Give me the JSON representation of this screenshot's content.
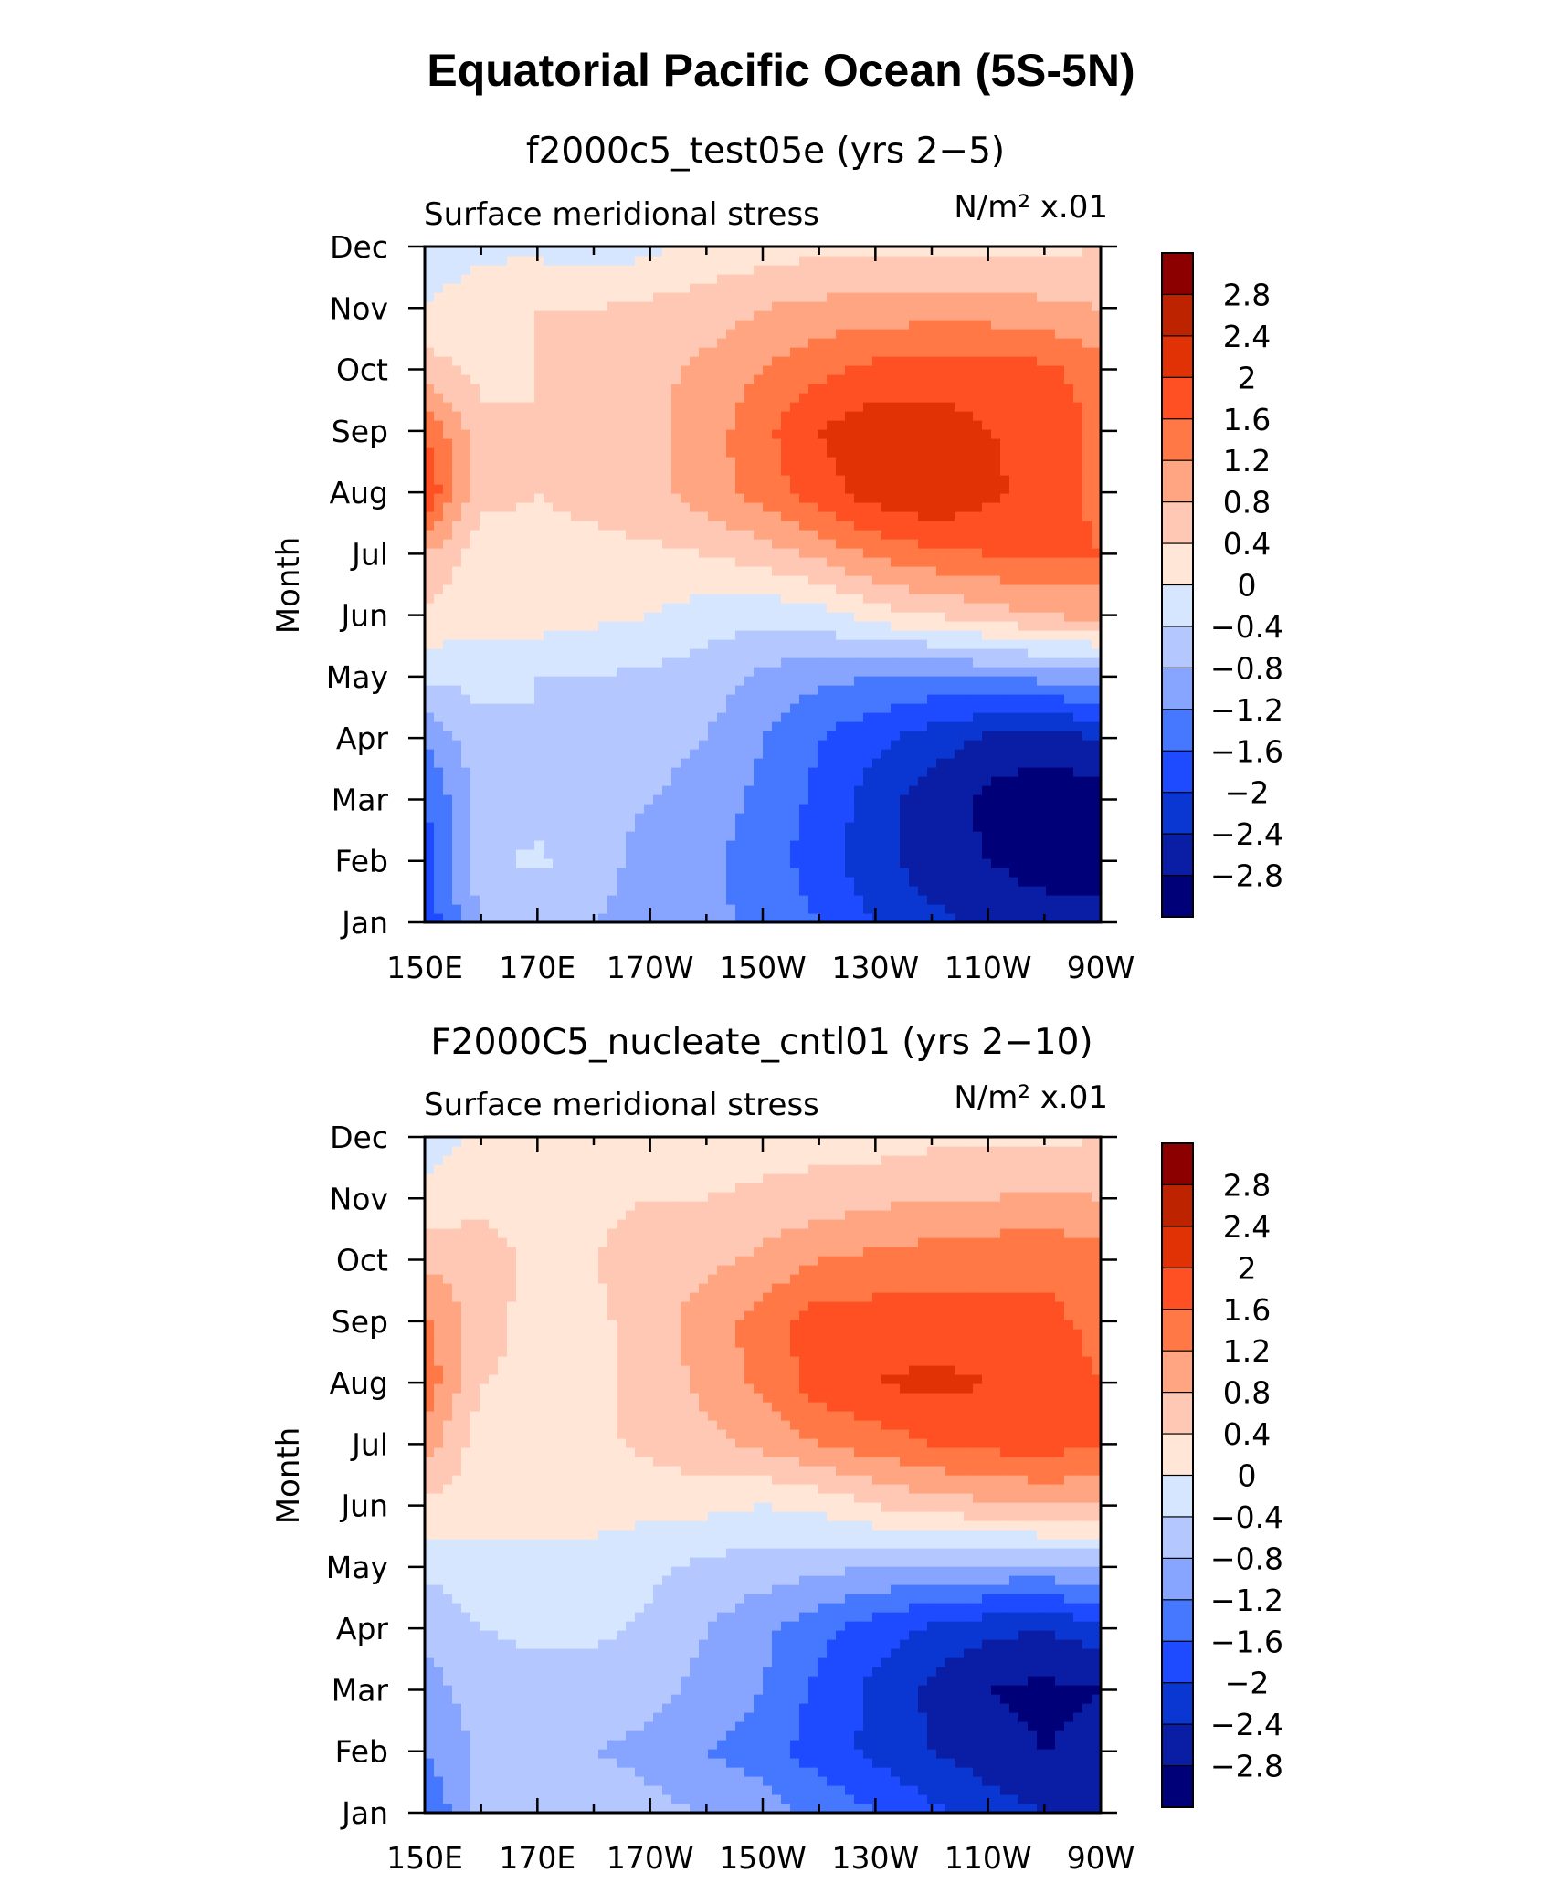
{
  "title": "Equatorial Pacific Ocean (5S-5N)",
  "colors": [
    "#000078",
    "#0a1ea5",
    "#0a37d2",
    "#1e4bff",
    "#4678ff",
    "#87a5ff",
    "#b4c8ff",
    "#d7e6ff",
    "#ffe6d7",
    "#ffc8b4",
    "#ffa582",
    "#ff7846",
    "#ff5023",
    "#e13205",
    "#be2300",
    "#8c0000"
  ],
  "colorbar_labels": [
    "2.8",
    "2.4",
    "2",
    "1.6",
    "1.2",
    "0.8",
    "0.4",
    "0",
    "−0.4",
    "−0.8",
    "−1.2",
    "−1.6",
    "−2",
    "−2.4",
    "−2.8"
  ],
  "chart_data": [
    {
      "type": "heatmap",
      "subtitle": "f2000c5_test05e (yrs 2−5)",
      "left_title": "Surface meridional stress",
      "units": "N/m² x.01",
      "ylabel": "Month",
      "xticks": [
        "150E",
        "170E",
        "170W",
        "150W",
        "130W",
        "110W",
        "90W"
      ],
      "yticks": [
        "Jan",
        "Feb",
        "Mar",
        "Apr",
        "May",
        "Jun",
        "Jul",
        "Aug",
        "Sep",
        "Oct",
        "Nov",
        "Dec"
      ],
      "x_lon": [
        150,
        160,
        170,
        180,
        190,
        200,
        210,
        220,
        230,
        240,
        250,
        260,
        270
      ],
      "levels": [
        -2.8,
        -2.4,
        -2,
        -1.6,
        -1.2,
        -0.8,
        -0.4,
        0,
        0.4,
        0.8,
        1.2,
        1.6,
        2,
        2.4,
        2.8
      ],
      "z": [
        [
          -1.9,
          -0.8,
          -0.8,
          -0.8,
          -0.9,
          -1.1,
          -1.3,
          -1.6,
          -2.0,
          -2.3,
          -2.5,
          -2.6,
          -2.6
        ],
        [
          -1.8,
          -0.5,
          -0.3,
          -0.7,
          -0.9,
          -1.1,
          -1.4,
          -1.8,
          -2.3,
          -2.6,
          -2.8,
          -3.0,
          -3.0
        ],
        [
          -1.6,
          -0.7,
          -0.6,
          -0.7,
          -0.8,
          -1.0,
          -1.3,
          -1.7,
          -2.2,
          -2.6,
          -2.9,
          -3.1,
          -3.0
        ],
        [
          -1.2,
          -0.5,
          -0.4,
          -0.5,
          -0.6,
          -0.8,
          -1.2,
          -1.6,
          -1.9,
          -2.2,
          -2.5,
          -2.6,
          -2.4
        ],
        [
          -0.3,
          -0.3,
          -0.4,
          -0.4,
          -0.5,
          -0.6,
          -0.9,
          -1.1,
          -1.2,
          -1.3,
          -1.2,
          -1.1,
          -1.0
        ],
        [
          0.3,
          0.2,
          0.2,
          0.1,
          0.0,
          -0.2,
          -0.3,
          -0.2,
          0.2,
          0.4,
          0.6,
          0.8,
          0.9
        ],
        [
          0.8,
          0.2,
          0.3,
          0.3,
          0.3,
          0.4,
          0.6,
          0.9,
          1.3,
          1.5,
          1.6,
          1.7,
          1.6
        ],
        [
          2.0,
          0.5,
          0.4,
          0.5,
          0.7,
          1.0,
          1.4,
          1.8,
          2.2,
          2.4,
          2.1,
          1.8,
          1.5
        ],
        [
          1.6,
          0.5,
          0.4,
          0.5,
          0.7,
          1.0,
          1.5,
          2.0,
          2.3,
          2.2,
          2.0,
          1.9,
          1.5
        ],
        [
          0.6,
          0.3,
          0.4,
          0.6,
          0.7,
          0.9,
          1.2,
          1.5,
          1.7,
          1.8,
          1.8,
          1.7,
          1.4
        ],
        [
          0.0,
          0.3,
          0.4,
          0.4,
          0.5,
          0.6,
          0.8,
          0.9,
          1.0,
          1.0,
          1.0,
          0.9,
          0.8
        ],
        [
          -0.3,
          -0.1,
          -0.1,
          -0.2,
          -0.1,
          0.1,
          0.2,
          0.3,
          0.3,
          0.3,
          0.3,
          0.3,
          0.4
        ]
      ]
    },
    {
      "type": "heatmap",
      "subtitle": "F2000C5_nucleate_cntl01 (yrs 2−10)",
      "left_title": "Surface meridional stress",
      "units": "N/m² x.01",
      "ylabel": "Month",
      "xticks": [
        "150E",
        "170E",
        "170W",
        "150W",
        "130W",
        "110W",
        "90W"
      ],
      "yticks": [
        "Jan",
        "Feb",
        "Mar",
        "Apr",
        "May",
        "Jun",
        "Jul",
        "Aug",
        "Sep",
        "Oct",
        "Nov",
        "Dec"
      ],
      "x_lon": [
        150,
        160,
        170,
        180,
        190,
        200,
        210,
        220,
        230,
        240,
        250,
        260,
        270
      ],
      "levels": [
        -2.8,
        -2.4,
        -2,
        -1.6,
        -1.2,
        -0.8,
        -0.4,
        0,
        0.4,
        0.8,
        1.2,
        1.6,
        2,
        2.4,
        2.8
      ],
      "z": [
        [
          -1.6,
          -0.7,
          -0.6,
          -0.6,
          -0.7,
          -0.8,
          -1.0,
          -1.3,
          -1.6,
          -1.9,
          -2.2,
          -2.4,
          -2.4
        ],
        [
          -1.2,
          -0.7,
          -0.7,
          -0.8,
          -0.9,
          -1.2,
          -1.4,
          -1.8,
          -2.1,
          -2.4,
          -2.6,
          -2.8,
          -2.7
        ],
        [
          -1.0,
          -0.6,
          -0.6,
          -0.6,
          -0.7,
          -0.9,
          -1.2,
          -1.7,
          -2.1,
          -2.5,
          -2.8,
          -2.9,
          -2.8
        ],
        [
          -0.7,
          -0.4,
          -0.3,
          -0.3,
          -0.5,
          -0.8,
          -1.1,
          -1.5,
          -1.8,
          -2.1,
          -2.3,
          -2.4,
          -2.2
        ],
        [
          -0.3,
          -0.2,
          -0.2,
          -0.2,
          -0.3,
          -0.5,
          -0.6,
          -0.7,
          -0.8,
          -0.9,
          -0.9,
          -0.9,
          -0.8
        ],
        [
          0.3,
          0.2,
          0.2,
          0.2,
          0.1,
          0.1,
          0.0,
          0.1,
          0.4,
          0.6,
          0.7,
          0.8,
          0.8
        ],
        [
          1.0,
          0.2,
          0.2,
          0.3,
          0.5,
          0.7,
          0.9,
          1.2,
          1.4,
          1.6,
          1.7,
          1.8,
          1.6
        ],
        [
          1.5,
          0.4,
          0.3,
          0.3,
          0.6,
          0.9,
          1.3,
          1.8,
          2.0,
          2.1,
          2.0,
          1.8,
          1.6
        ],
        [
          1.3,
          0.6,
          0.2,
          0.3,
          0.6,
          1.0,
          1.4,
          1.8,
          1.8,
          1.8,
          1.7,
          1.7,
          1.5
        ],
        [
          0.7,
          0.6,
          0.3,
          0.4,
          0.6,
          0.7,
          0.9,
          1.2,
          1.3,
          1.4,
          1.5,
          1.5,
          1.4
        ],
        [
          0.1,
          0.3,
          0.2,
          0.3,
          0.4,
          0.4,
          0.5,
          0.6,
          0.7,
          0.8,
          0.8,
          0.9,
          0.8
        ],
        [
          -0.2,
          0.1,
          0.1,
          0.0,
          0.0,
          0.1,
          0.2,
          0.2,
          0.2,
          0.3,
          0.3,
          0.3,
          0.4
        ]
      ]
    }
  ]
}
